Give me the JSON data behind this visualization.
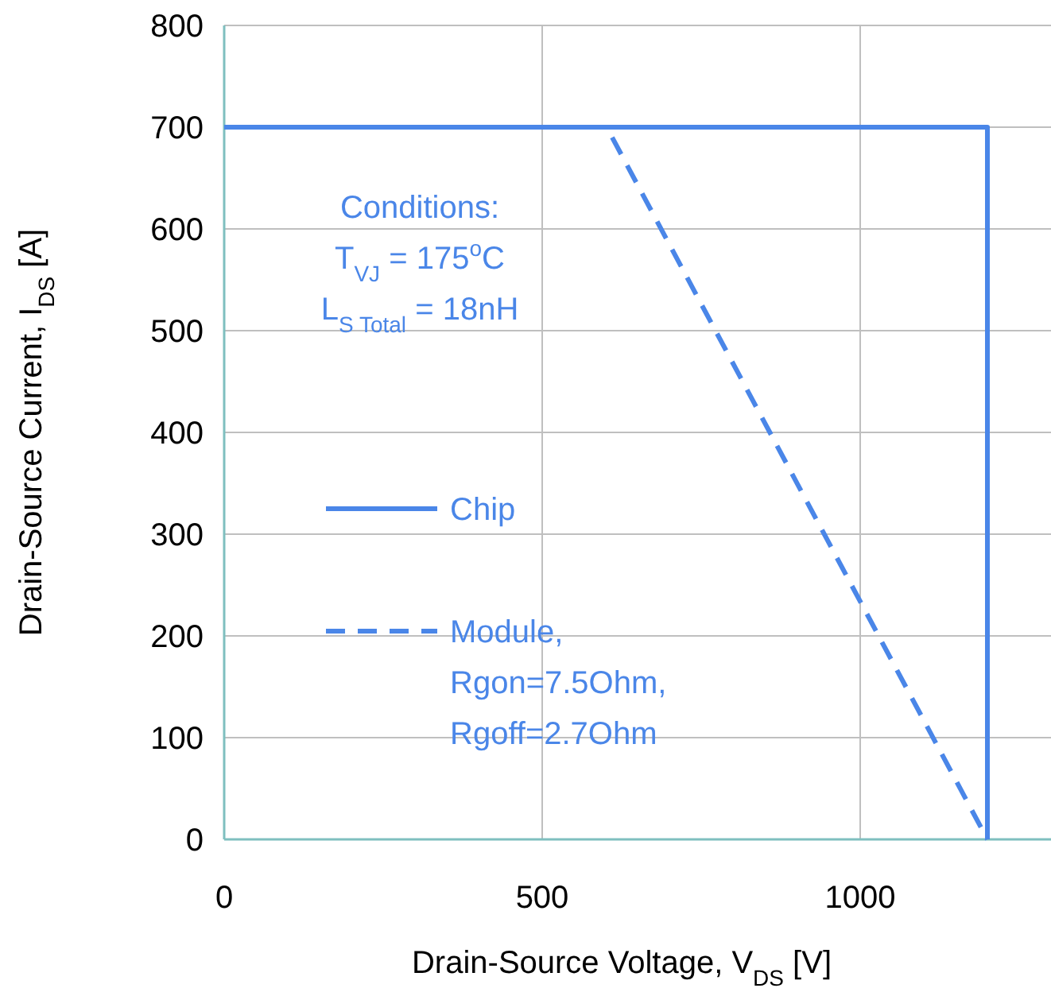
{
  "chart_data": {
    "type": "line",
    "xlabel": "Drain-Source Voltage, V$_{DS}$ [V]",
    "ylabel": "Drain-Source Current, I$_{DS}$ [A]",
    "xlim": [
      0,
      1300
    ],
    "xticks": [
      0,
      500,
      1000
    ],
    "ylim": [
      0,
      800
    ],
    "yticks": [
      0,
      100,
      200,
      300,
      400,
      500,
      600,
      700,
      800
    ],
    "grid": true,
    "legend": "left",
    "annotations": [
      "Conditions:",
      "T$_{VJ}$ = 175$^{o}$C",
      "L$_{S Total}$ = 18nH"
    ],
    "series": [
      {
        "name": "Chip",
        "color": "#4a86e8",
        "x": [
          0,
          1200,
          1200
        ],
        "values": [
          700,
          700,
          0
        ],
        "line_style": "solid"
      },
      {
        "name": "Module, Rgon=7.5Ohm, Rgoff=2.7Ohm",
        "color": "#4a86e8",
        "x": [
          610,
          1200
        ],
        "values": [
          690,
          0
        ],
        "line_style": "dashed"
      }
    ]
  }
}
